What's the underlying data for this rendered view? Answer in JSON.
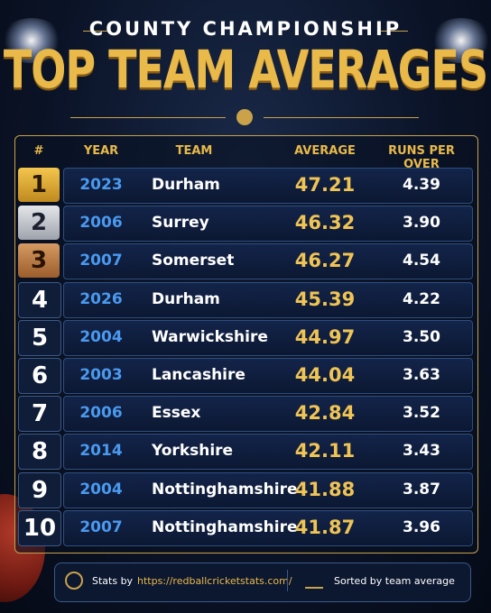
{
  "header": {
    "subtitle": "COUNTY CHAMPIONSHIP",
    "title": "TOP TEAM AVERAGES"
  },
  "table": {
    "columns": [
      "#",
      "YEAR",
      "TEAM",
      "AVERAGE",
      "RUNS PER OVER"
    ],
    "rows": [
      [
        "1",
        "2023",
        "Durham",
        "47.21",
        "4.39"
      ],
      [
        "2",
        "2006",
        "Surrey",
        "46.32",
        "3.90"
      ],
      [
        "3",
        "2007",
        "Somerset",
        "46.27",
        "4.54"
      ],
      [
        "4",
        "2026",
        "Durham",
        "45.39",
        "4.22"
      ],
      [
        "5",
        "2004",
        "Warwickshire",
        "44.97",
        "3.50"
      ],
      [
        "6",
        "2003",
        "Lancashire",
        "44.04",
        "3.63"
      ],
      [
        "7",
        "2006",
        "Essex",
        "42.84",
        "3.52"
      ],
      [
        "8",
        "2014",
        "Yorkshire",
        "42.11",
        "3.43"
      ],
      [
        "9",
        "2004",
        "Nottinghamshire",
        "41.88",
        "3.87"
      ],
      [
        "10",
        "2007",
        "Nottinghamshire",
        "41.87",
        "3.96"
      ]
    ]
  },
  "footer": {
    "label": "Stats by",
    "url": "https://redballcricketstats.com/",
    "note": "Sorted by team average"
  }
}
